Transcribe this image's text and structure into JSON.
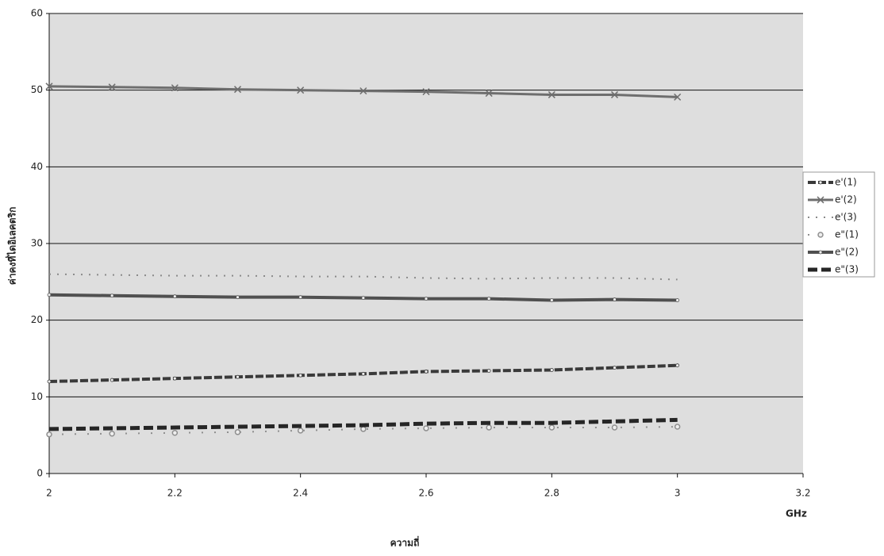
{
  "chart_data": {
    "type": "line",
    "xlabel": "ความถี่",
    "ylabel": "ค่าคงที่ไดอิเลคตริก",
    "x_unit_label": "GHz",
    "x": [
      2.0,
      2.1,
      2.2,
      2.3,
      2.4,
      2.5,
      2.6,
      2.7,
      2.8,
      2.9,
      3.0
    ],
    "series": [
      {
        "name": "e'(1)",
        "color": "#3a3a3a",
        "marker": "dot",
        "dash": "10 3",
        "width": 4,
        "values": [
          12.0,
          12.2,
          12.4,
          12.6,
          12.8,
          13.0,
          13.3,
          13.4,
          13.5,
          13.8,
          14.1
        ]
      },
      {
        "name": "e'(2)",
        "color": "#6e6e6e",
        "marker": "x",
        "dash": "",
        "width": 3,
        "values": [
          50.5,
          50.4,
          50.3,
          50.1,
          50.0,
          49.9,
          49.8,
          49.6,
          49.4,
          49.4,
          49.1
        ]
      },
      {
        "name": "e'(3)",
        "color": "#8a8a8a",
        "marker": "none",
        "dash": "2 8",
        "width": 2,
        "values": [
          26.0,
          25.9,
          25.8,
          25.8,
          25.7,
          25.7,
          25.5,
          25.4,
          25.5,
          25.5,
          25.3
        ]
      },
      {
        "name": "e\"(1)",
        "color": "#8f8f8f",
        "marker": "circle",
        "dash": "2 14",
        "width": 2,
        "values": [
          5.1,
          5.2,
          5.3,
          5.4,
          5.6,
          5.8,
          5.9,
          6.0,
          6.0,
          6.0,
          6.1
        ]
      },
      {
        "name": "e\"(2)",
        "color": "#505050",
        "marker": "dot",
        "dash": "",
        "width": 4,
        "values": [
          23.3,
          23.2,
          23.1,
          23.0,
          23.0,
          22.9,
          22.8,
          22.8,
          22.6,
          22.7,
          22.6
        ]
      },
      {
        "name": "e\"(3)",
        "color": "#262626",
        "marker": "none",
        "dash": "12 5",
        "width": 5,
        "values": [
          5.8,
          5.9,
          6.0,
          6.1,
          6.2,
          6.3,
          6.5,
          6.6,
          6.6,
          6.8,
          7.0
        ]
      }
    ],
    "xlim": [
      2,
      3.2
    ],
    "xticks": [
      2,
      2.2,
      2.4,
      2.6,
      2.8,
      3,
      3.2
    ],
    "ylim": [
      0,
      60
    ],
    "yticks": [
      0,
      10,
      20,
      30,
      40,
      50,
      60
    ],
    "grid": true,
    "legend": "right"
  }
}
